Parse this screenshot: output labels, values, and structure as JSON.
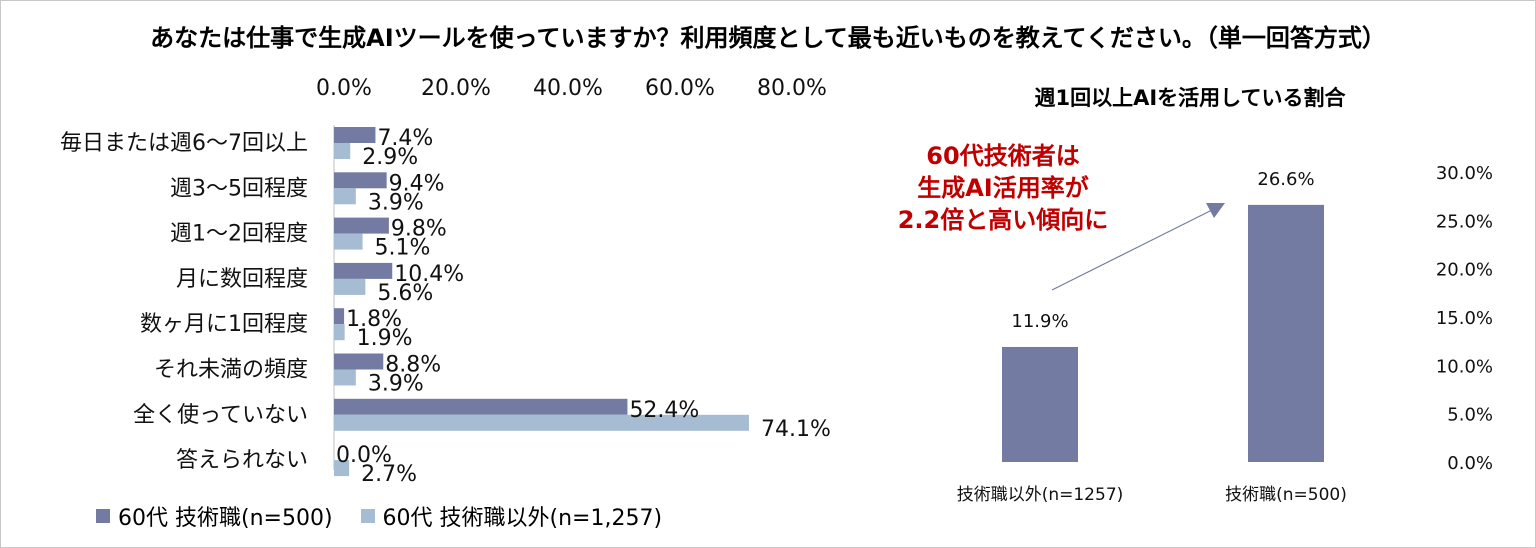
{
  "title": "あなたは仕事で生成AIツールを使っていますか？利用頻度として最も近いものを教えてください。（単一回答方式）",
  "left_chart": {
    "legend": [
      "60代 技術職(n=500)",
      "60代 技術職以外(n=1,257)"
    ]
  },
  "right_chart": {
    "title": "週1回以上AIを活用している割合",
    "callout": [
      "60代技術者は",
      "生成AI活用率が",
      "2.2倍と高い傾向に"
    ]
  },
  "colors": {
    "series_a": "#737ba3",
    "series_b": "#a6bcd2",
    "callout": "#c00000",
    "arrow": "#737ba3"
  },
  "chart_data": [
    {
      "type": "bar",
      "orientation": "horizontal",
      "x_ticks": [
        "0.0%",
        "20.0%",
        "40.0%",
        "60.0%",
        "80.0%"
      ],
      "xlim": [
        0,
        80
      ],
      "categories": [
        "毎日または週6～7回以上",
        "週3～5回程度",
        "週1～2回程度",
        "月に数回程度",
        "数ヶ月に1回程度",
        "それ未満の頻度",
        "全く使っていない",
        "答えられない"
      ],
      "series": [
        {
          "name": "60代 技術職(n=500)",
          "values": [
            7.4,
            9.4,
            9.8,
            10.4,
            1.8,
            8.8,
            52.4,
            0.0
          ],
          "labels": [
            "7.4%",
            "9.4%",
            "9.8%",
            "10.4%",
            "1.8%",
            "8.8%",
            "52.4%",
            "0.0%"
          ]
        },
        {
          "name": "60代 技術職以外(n=1,257)",
          "values": [
            2.9,
            3.9,
            5.1,
            5.6,
            1.9,
            3.9,
            74.1,
            2.7
          ],
          "labels": [
            "2.9%",
            "3.9%",
            "5.1%",
            "5.6%",
            "1.9%",
            "3.9%",
            "74.1%",
            "2.7%"
          ]
        }
      ],
      "legend_position": "bottom"
    },
    {
      "type": "bar",
      "orientation": "vertical",
      "title": "週1回以上AIを活用している割合",
      "categories": [
        "技術職以外(n=1257)",
        "技術職(n=500)"
      ],
      "values": [
        11.9,
        26.6
      ],
      "labels": [
        "11.9%",
        "26.6%"
      ],
      "y_ticks": [
        "30.0%",
        "25.0%",
        "20.0%",
        "15.0%",
        "10.0%",
        "5.0%",
        "0.0%"
      ],
      "ylim": [
        0,
        30
      ],
      "y_axis_side": "right"
    }
  ]
}
